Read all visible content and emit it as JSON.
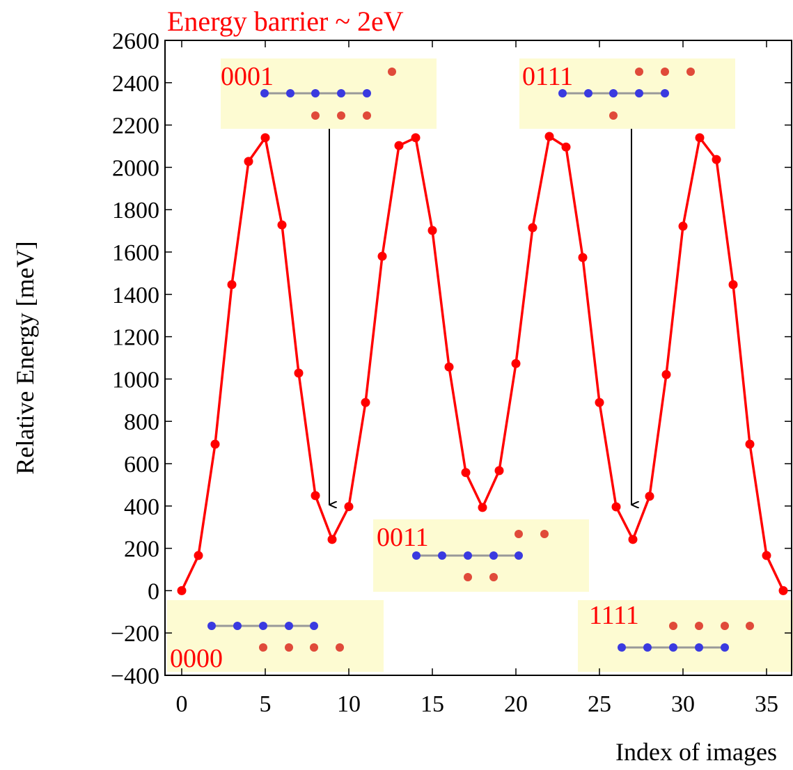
{
  "chart_data": {
    "type": "line",
    "title": "Energy barrier ~ 2eV",
    "x_label": "Index of images",
    "y_label": "Relative Energy [meV]",
    "x": [
      0,
      1,
      2,
      3,
      4,
      5,
      6,
      7,
      8,
      9,
      10,
      11,
      12,
      13,
      14,
      15,
      16,
      17,
      18,
      19,
      20,
      21,
      22,
      23,
      24,
      25,
      26,
      27,
      28,
      29,
      30,
      31,
      32,
      33,
      34,
      35,
      36
    ],
    "values": [
      0,
      166,
      692,
      1446,
      2028,
      2140,
      1728,
      1028,
      449,
      242,
      397,
      889,
      1580,
      2103,
      2140,
      1702,
      1057,
      558,
      393,
      567,
      1073,
      1715,
      2146,
      2096,
      1574,
      889,
      396,
      242,
      446,
      1021,
      1722,
      2140,
      2037,
      1446,
      692,
      166,
      0
    ],
    "color": "#ff0000",
    "xlim": [
      -1,
      36.5
    ],
    "ylim": [
      -400,
      2600
    ],
    "xticks": [
      0,
      5,
      10,
      15,
      20,
      25,
      30,
      35
    ],
    "yticks": [
      {
        "value": -400,
        "label": "−400"
      },
      {
        "value": -200,
        "label": "−200"
      },
      0,
      200,
      400,
      600,
      800,
      1000,
      1200,
      1400,
      1600,
      1800,
      2000,
      2200,
      2400,
      2600
    ],
    "annotations": [
      "0001",
      "0111",
      "0011",
      "0000",
      "1111"
    ]
  }
}
